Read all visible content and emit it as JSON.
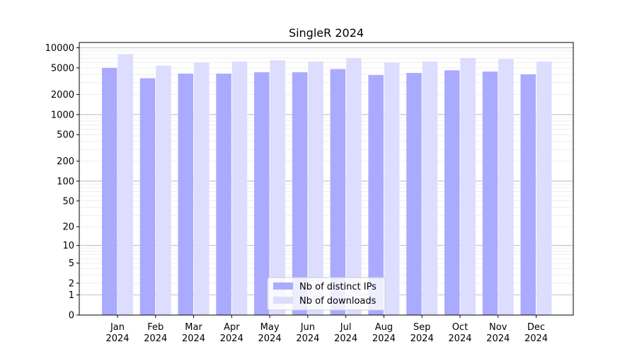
{
  "chart_data": {
    "type": "bar",
    "title": "SingleR 2024",
    "xlabel": "",
    "ylabel": "",
    "y_scale": "symlog",
    "ylim": [
      0,
      12000
    ],
    "y_ticks": [
      0,
      1,
      2,
      5,
      10,
      20,
      50,
      100,
      200,
      500,
      1000,
      2000,
      5000,
      10000
    ],
    "y_tick_labels": [
      "0",
      "1",
      "2",
      "5",
      "10",
      "20",
      "50",
      "100",
      "200",
      "500",
      "1000",
      "2000",
      "5000",
      "10000"
    ],
    "categories": [
      "Jan\n2024",
      "Feb\n2024",
      "Mar\n2024",
      "Apr\n2024",
      "May\n2024",
      "Jun\n2024",
      "Jul\n2024",
      "Aug\n2024",
      "Sep\n2024",
      "Oct\n2024",
      "Nov\n2024",
      "Dec\n2024"
    ],
    "series": [
      {
        "name": "Nb of distinct IPs",
        "color": "#aaaaff",
        "values": [
          5000,
          3500,
          4100,
          4100,
          4300,
          4300,
          4800,
          3900,
          4200,
          4600,
          4400,
          4000
        ]
      },
      {
        "name": "Nb of downloads",
        "color": "#ddddff",
        "values": [
          8000,
          5400,
          6000,
          6200,
          6500,
          6200,
          7000,
          6000,
          6200,
          7000,
          6800,
          6200
        ]
      }
    ],
    "grid": true,
    "legend_position": "lower center"
  }
}
